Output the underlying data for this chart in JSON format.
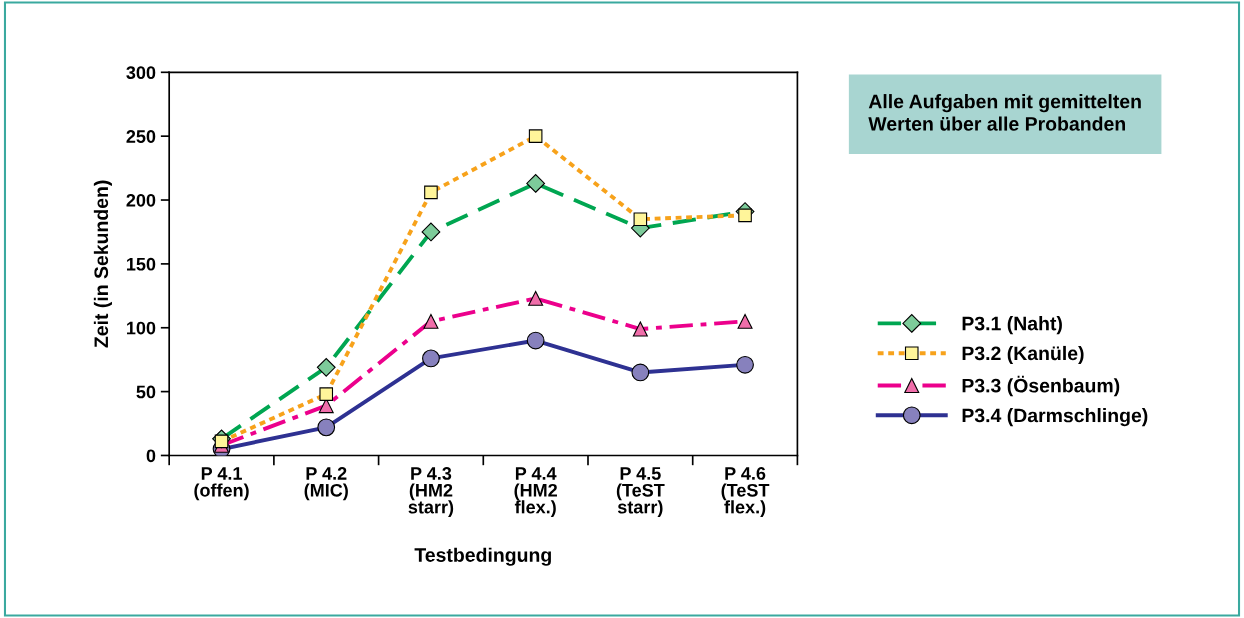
{
  "chart_data": {
    "type": "line",
    "xlabel": "Testbedingung",
    "ylabel": "Zeit (in Sekunden)",
    "categories": [
      "P 4.1\n(offen)",
      "P 4.2\n(MIC)",
      "P 4.3\n(HM2\nstarr)",
      "P 4.4\n(HM2\nflex.)",
      "P 4.5\n(TeST\nstarr)",
      "P 4.6\n(TeST\nflex.)"
    ],
    "series": [
      {
        "name": "P3.1 (Naht)",
        "color": "#00a651",
        "values": [
          13,
          69,
          175,
          213,
          178,
          191
        ],
        "marker": "diamond",
        "line_style": "dashed"
      },
      {
        "name": "P3.2 (Kanüle)",
        "color": "#f7a21b",
        "values": [
          11,
          48,
          206,
          250,
          185,
          188
        ],
        "marker": "square",
        "line_style": "dotted"
      },
      {
        "name": "P3.3 (Ösenbaum)",
        "color": "#ec008c",
        "values": [
          8,
          39,
          105,
          123,
          99,
          105
        ],
        "marker": "triangle",
        "line_style": "dashdot"
      },
      {
        "name": "P3.4 (Darmschlinge)",
        "color": "#2e3192",
        "values": [
          5,
          22,
          76,
          90,
          65,
          71
        ],
        "marker": "circle",
        "line_style": "solid"
      }
    ],
    "ylim": [
      0,
      300
    ],
    "yticks": [
      0,
      50,
      100,
      150,
      200,
      250,
      300
    ],
    "grid": false,
    "legend": "right",
    "annotations": [
      "Alle Aufgaben mit gemittelten\nWerten über alle Probanden"
    ]
  }
}
